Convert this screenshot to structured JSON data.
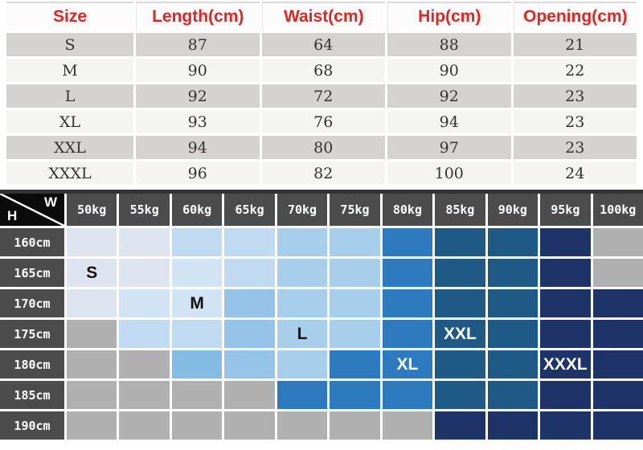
{
  "colors": {
    "header_red": "#e32421",
    "row_gray": "#d4d3d1",
    "row_light": "#f4f4f2",
    "value_text": "#333333",
    "matrix_header_bg": "#4c4c4c",
    "matrix_corner_bg": "#0b0b0b",
    "matrix_top_border": "#333333",
    "grid_line": "#ffffff"
  },
  "size_table": {
    "headers": [
      "Size",
      "Length(cm)",
      "Waist(cm)",
      "Hip(cm)",
      "Opening(cm)"
    ],
    "rows": [
      [
        "S",
        "87",
        "64",
        "88",
        "21"
      ],
      [
        "M",
        "90",
        "68",
        "90",
        "22"
      ],
      [
        "L",
        "92",
        "72",
        "92",
        "23"
      ],
      [
        "XL",
        "93",
        "76",
        "94",
        "23"
      ],
      [
        "XXL",
        "94",
        "80",
        "97",
        "23"
      ],
      [
        "XXXL",
        "96",
        "82",
        "100",
        "24"
      ]
    ]
  },
  "matrix": {
    "corner": {
      "weight_axis_label": "W",
      "height_axis_label": "H"
    },
    "weights": [
      "50kg",
      "55kg",
      "60kg",
      "65kg",
      "70kg",
      "75kg",
      "80kg",
      "85kg",
      "90kg",
      "95kg",
      "100kg"
    ],
    "heights": [
      "160cm",
      "165cm",
      "170cm",
      "175cm",
      "180cm",
      "185cm",
      "190cm"
    ],
    "palette": {
      "lav": "#dee3f0",
      "lt1": "#d2e4f4",
      "lt2": "#c0dbf1",
      "lt3": "#a7ceeb",
      "ml": "#95c4e8",
      "ml2": "#85bce3",
      "md": "#2e7abf",
      "dk": "#1e5a85",
      "nv": "#1e3468",
      "gr": "#b0b0b0"
    },
    "cells": [
      [
        "lav",
        "lav",
        "lt2",
        "lt2",
        "lt3",
        "lt3",
        "md",
        "dk",
        "dk",
        "nv",
        "gr"
      ],
      [
        "lav",
        "lav",
        "lt1",
        "lt2",
        "lt3",
        "lt3",
        "md",
        "dk",
        "dk",
        "nv",
        "gr"
      ],
      [
        "lav",
        "lt1",
        "lt1",
        "ml",
        "lt3",
        "lt3",
        "md",
        "dk",
        "dk",
        "nv",
        "nv"
      ],
      [
        "gr",
        "lt2",
        "lt2",
        "ml",
        "lt3",
        "lt3",
        "md",
        "dk",
        "dk",
        "nv",
        "nv"
      ],
      [
        "gr",
        "gr",
        "ml2",
        "ml",
        "lt3",
        "md",
        "md",
        "dk",
        "dk",
        "nv",
        "nv"
      ],
      [
        "gr",
        "gr",
        "gr",
        "gr",
        "md",
        "md",
        "md",
        "dk",
        "dk",
        "nv",
        "nv"
      ],
      [
        "gr",
        "gr",
        "gr",
        "gr",
        "gr",
        "gr",
        "gr",
        "nv",
        "nv",
        "nv",
        "nv"
      ]
    ],
    "size_labels": [
      {
        "row": 1,
        "col": 0,
        "text": "S",
        "tone": "dark"
      },
      {
        "row": 2,
        "col": 2,
        "text": "M",
        "tone": "dark"
      },
      {
        "row": 3,
        "col": 4,
        "text": "L",
        "tone": "dark"
      },
      {
        "row": 4,
        "col": 6,
        "text": "XL",
        "tone": "light"
      },
      {
        "row": 3,
        "col": 7,
        "text": "XXL",
        "tone": "light"
      },
      {
        "row": 4,
        "col": 9,
        "text": "XXXL",
        "tone": "light"
      }
    ]
  },
  "chart_data": [
    {
      "type": "table",
      "title": "",
      "columns": [
        "Size",
        "Length(cm)",
        "Waist(cm)",
        "Hip(cm)",
        "Opening(cm)"
      ],
      "rows": [
        [
          "S",
          87,
          64,
          88,
          21
        ],
        [
          "M",
          90,
          68,
          90,
          22
        ],
        [
          "L",
          92,
          72,
          92,
          23
        ],
        [
          "XL",
          93,
          76,
          94,
          23
        ],
        [
          "XXL",
          94,
          80,
          97,
          23
        ],
        [
          "XXXL",
          96,
          82,
          100,
          24
        ]
      ]
    },
    {
      "type": "heatmap",
      "x_axis_label": "W",
      "y_axis_label": "H",
      "x": [
        "50kg",
        "55kg",
        "60kg",
        "65kg",
        "70kg",
        "75kg",
        "80kg",
        "85kg",
        "90kg",
        "95kg",
        "100kg"
      ],
      "y": [
        "160cm",
        "165cm",
        "170cm",
        "175cm",
        "180cm",
        "185cm",
        "190cm"
      ],
      "cell_shades": [
        [
          "lav",
          "lav",
          "lt2",
          "lt2",
          "lt3",
          "lt3",
          "md",
          "dk",
          "dk",
          "nv",
          "gr"
        ],
        [
          "lav",
          "lav",
          "lt1",
          "lt2",
          "lt3",
          "lt3",
          "md",
          "dk",
          "dk",
          "nv",
          "gr"
        ],
        [
          "lav",
          "lt1",
          "lt1",
          "ml",
          "lt3",
          "lt3",
          "md",
          "dk",
          "dk",
          "nv",
          "nv"
        ],
        [
          "gr",
          "lt2",
          "lt2",
          "ml",
          "lt3",
          "lt3",
          "md",
          "dk",
          "dk",
          "nv",
          "nv"
        ],
        [
          "gr",
          "gr",
          "ml2",
          "ml",
          "lt3",
          "md",
          "md",
          "dk",
          "dk",
          "nv",
          "nv"
        ],
        [
          "gr",
          "gr",
          "gr",
          "gr",
          "md",
          "md",
          "md",
          "dk",
          "dk",
          "nv",
          "nv"
        ],
        [
          "gr",
          "gr",
          "gr",
          "gr",
          "gr",
          "gr",
          "gr",
          "nv",
          "nv",
          "nv",
          "nv"
        ]
      ],
      "annotations": [
        {
          "y": "165cm",
          "x": "50kg",
          "text": "S"
        },
        {
          "y": "170cm",
          "x": "60kg",
          "text": "M"
        },
        {
          "y": "175cm",
          "x": "70kg",
          "text": "L"
        },
        {
          "y": "180cm",
          "x": "80kg",
          "text": "XL"
        },
        {
          "y": "175cm",
          "x": "85kg",
          "text": "XXL"
        },
        {
          "y": "180cm",
          "x": "95kg",
          "text": "XXXL"
        }
      ],
      "legend_position": "none",
      "grid": true
    }
  ]
}
